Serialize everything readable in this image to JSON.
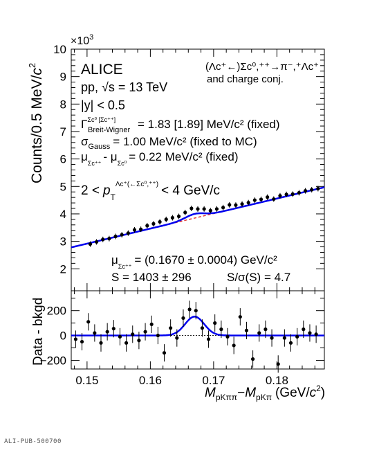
{
  "chart_data": [
    {
      "type": "scatter",
      "panel": "upper",
      "ylabel": "Counts/0.5 MeV/c²",
      "ylabel_parts": {
        "text": "Counts/0.5 MeV/",
        "var": "c",
        "exp": "2"
      },
      "exponent_label": "×10",
      "exponent_power": "3",
      "xlim": [
        0.1475,
        0.1875
      ],
      "ylim": [
        1.2,
        10
      ],
      "yticks": [
        "2",
        "3",
        "4",
        "5",
        "6",
        "7",
        "8",
        "9",
        "10"
      ],
      "ytick_values": [
        2,
        3,
        4,
        5,
        6,
        7,
        8,
        9,
        10
      ],
      "annotations": {
        "experiment": "ALICE",
        "system": "pp,",
        "energy": "√s = 13 TeV",
        "rapidity": "|y| < 0.5",
        "gamma": "Γ",
        "gamma_sup": "Σc⁰ [Σc⁺⁺]",
        "gamma_sub": "Breit-Wigner",
        "gamma_val": "= 1.83 [1.89] MeV/c² (fixed)",
        "sigma": "σ",
        "sigma_sub": "Gauss",
        "sigma_val": "= 1.00 MeV/c² (fixed to MC)",
        "mu_diff": "μ",
        "mu_diff_sub1": "Σc⁺⁺",
        "mu_diff_mid": "- μ",
        "mu_diff_sub2": "Σc⁰",
        "mu_diff_val": "= 0.22 MeV/c² (fixed)",
        "pt_left": "2 <",
        "pt_p": "p",
        "pt_sub": "T",
        "pt_sup": "Λc⁺(←Σc⁰,⁺⁺)",
        "pt_right": "< 4 GeV/c",
        "decay_line1": "(Λc⁺←)Σc⁰,⁺⁺→π⁻,⁺Λc⁺",
        "decay_line2": "and charge conj.",
        "mu_fit": "μ",
        "mu_fit_sub": "Σc⁺⁺",
        "mu_fit_val": "= (0.1670 ± 0.0004) GeV/c²",
        "signal": "S = 1403 ± 296",
        "significance": "S/σ(S) = 4.7"
      },
      "series": [
        {
          "name": "Data",
          "x": [
            0.1505,
            0.1515,
            0.1525,
            0.1535,
            0.1545,
            0.1555,
            0.1565,
            0.1575,
            0.1585,
            0.1595,
            0.1605,
            0.1615,
            0.1625,
            0.1635,
            0.1645,
            0.1655,
            0.1665,
            0.1675,
            0.1685,
            0.1695,
            0.1705,
            0.1715,
            0.1725,
            0.1735,
            0.1745,
            0.1755,
            0.1765,
            0.1775,
            0.1785,
            0.1795,
            0.1805,
            0.1815,
            0.1825,
            0.1835,
            0.1845,
            0.1855,
            0.1865
          ],
          "y": [
            2.9,
            2.98,
            3.07,
            3.1,
            3.18,
            3.24,
            3.3,
            3.42,
            3.44,
            3.57,
            3.64,
            3.71,
            3.8,
            3.86,
            3.91,
            4.05,
            4.2,
            4.18,
            4.18,
            4.12,
            4.18,
            4.23,
            4.33,
            4.32,
            4.36,
            4.41,
            4.5,
            4.53,
            4.61,
            4.54,
            4.66,
            4.71,
            4.72,
            4.77,
            4.84,
            4.88,
            4.92
          ]
        },
        {
          "name": "Total fit",
          "color": "#0000ee",
          "x": [
            0.1475,
            0.1875
          ],
          "y": [
            2.78,
            4.97
          ]
        },
        {
          "name": "Background",
          "color": "#e03030",
          "x": [
            0.1475,
            0.1875
          ],
          "y": [
            2.78,
            4.97
          ]
        }
      ]
    },
    {
      "type": "scatter",
      "panel": "lower",
      "ylabel": "Data - bkgd",
      "xlabel_parts": {
        "m1": "M",
        "s1": "pKππ",
        "dash": "−",
        "m2": "M",
        "s2": "pKπ",
        "unit": "(GeV/",
        "var": "c",
        "exp": "2",
        "close": ")"
      },
      "xlabel": "MpKππ−MpKπ (GeV/c²)",
      "xlim": [
        0.1475,
        0.1875
      ],
      "ylim": [
        -270,
        360
      ],
      "yticks": [
        "−200",
        "0",
        "200"
      ],
      "ytick_values": [
        -200,
        0,
        200
      ],
      "xticks": [
        "0.15",
        "0.16",
        "0.17",
        "0.18"
      ],
      "xtick_values": [
        0.15,
        0.16,
        0.17,
        0.18
      ],
      "series": [
        {
          "name": "Data",
          "x": [
            0.1482,
            0.1492,
            0.1502,
            0.1512,
            0.1522,
            0.1532,
            0.1542,
            0.1552,
            0.1562,
            0.1572,
            0.1582,
            0.1592,
            0.1602,
            0.1612,
            0.1622,
            0.1632,
            0.1642,
            0.1652,
            0.1662,
            0.1672,
            0.1682,
            0.1692,
            0.1702,
            0.1712,
            0.1722,
            0.1732,
            0.1742,
            0.1752,
            0.1762,
            0.1772,
            0.1782,
            0.1792,
            0.1802,
            0.1812,
            0.1822,
            0.1832,
            0.1842,
            0.1852,
            0.1862
          ],
          "y": [
            -30,
            -50,
            110,
            20,
            -60,
            30,
            55,
            -10,
            -60,
            10,
            -40,
            30,
            90,
            0,
            -140,
            60,
            -20,
            140,
            210,
            200,
            60,
            -30,
            100,
            50,
            -10,
            -80,
            150,
            40,
            -190,
            20,
            50,
            -20,
            -230,
            -20,
            -60,
            -10,
            50,
            20,
            10
          ],
          "err": [
            70,
            70,
            70,
            70,
            70,
            70,
            70,
            70,
            70,
            70,
            70,
            70,
            70,
            70,
            70,
            70,
            70,
            70,
            70,
            70,
            70,
            70,
            70,
            70,
            70,
            70,
            70,
            70,
            70,
            70,
            70,
            70,
            70,
            70,
            70,
            70,
            70,
            70,
            70
          ]
        },
        {
          "name": "Signal fit",
          "color": "#0000ee",
          "amplitude": 152,
          "mean": 0.167,
          "width": 0.0015
        }
      ]
    }
  ],
  "footer": {
    "publication_id": "ALI-PUB-500700"
  }
}
